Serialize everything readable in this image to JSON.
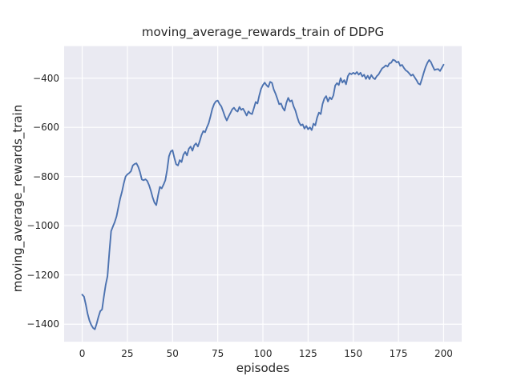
{
  "figure": {
    "title": "moving_average_rewards_train of DDPG",
    "xlabel": "episodes",
    "ylabel": "moving_average_rewards_train",
    "colors": {
      "line": "#4c72b0",
      "plot_bg": "#eaeaf2",
      "grid": "#ffffff",
      "text": "#262626",
      "figure_bg": "#ffffff"
    }
  },
  "chart_data": {
    "type": "line",
    "title": "moving_average_rewards_train of DDPG",
    "xlabel": "episodes",
    "ylabel": "moving_average_rewards_train",
    "grid": true,
    "legend_position": "none",
    "xlim": [
      -10,
      210
    ],
    "ylim": [
      -1471.5,
      -269.6
    ],
    "x_ticks": [
      0,
      25,
      50,
      75,
      100,
      125,
      150,
      175,
      200
    ],
    "x_tick_labels": [
      "0",
      "25",
      "50",
      "75",
      "100",
      "125",
      "150",
      "175",
      "200"
    ],
    "y_ticks": [
      -400,
      -600,
      -800,
      -1000,
      -1200,
      -1400
    ],
    "y_tick_labels": [
      "−400",
      "−600",
      "−800",
      "−1000",
      "−1200",
      "−1400"
    ],
    "x_start": 0,
    "x_step": 1,
    "series": [
      {
        "name": "moving_average_rewards_train",
        "color": "#4c72b0",
        "values": [
          -1280,
          -1288,
          -1320,
          -1358,
          -1385,
          -1403,
          -1415,
          -1421,
          -1398,
          -1370,
          -1347,
          -1340,
          -1288,
          -1240,
          -1205,
          -1110,
          -1022,
          -1003,
          -985,
          -962,
          -925,
          -890,
          -862,
          -828,
          -800,
          -791,
          -786,
          -778,
          -755,
          -749,
          -746,
          -760,
          -782,
          -812,
          -815,
          -811,
          -818,
          -835,
          -858,
          -885,
          -906,
          -916,
          -876,
          -842,
          -848,
          -833,
          -815,
          -773,
          -718,
          -698,
          -693,
          -724,
          -750,
          -755,
          -733,
          -741,
          -711,
          -700,
          -714,
          -687,
          -678,
          -695,
          -673,
          -665,
          -678,
          -657,
          -632,
          -615,
          -620,
          -600,
          -583,
          -555,
          -525,
          -505,
          -494,
          -491,
          -505,
          -515,
          -535,
          -556,
          -572,
          -556,
          -542,
          -527,
          -520,
          -531,
          -536,
          -517,
          -529,
          -524,
          -537,
          -552,
          -535,
          -543,
          -546,
          -522,
          -497,
          -503,
          -470,
          -443,
          -428,
          -418,
          -429,
          -436,
          -415,
          -419,
          -446,
          -463,
          -484,
          -506,
          -503,
          -521,
          -532,
          -500,
          -480,
          -495,
          -490,
          -515,
          -532,
          -558,
          -580,
          -592,
          -588,
          -605,
          -594,
          -608,
          -600,
          -611,
          -585,
          -592,
          -560,
          -540,
          -546,
          -505,
          -483,
          -473,
          -495,
          -478,
          -486,
          -470,
          -430,
          -420,
          -428,
          -400,
          -418,
          -408,
          -425,
          -392,
          -380,
          -384,
          -378,
          -383,
          -375,
          -386,
          -378,
          -393,
          -386,
          -403,
          -390,
          -404,
          -387,
          -399,
          -404,
          -392,
          -385,
          -372,
          -360,
          -355,
          -348,
          -353,
          -340,
          -337,
          -325,
          -328,
          -336,
          -333,
          -350,
          -346,
          -358,
          -368,
          -373,
          -381,
          -390,
          -385,
          -397,
          -408,
          -422,
          -426,
          -403,
          -378,
          -355,
          -338,
          -326,
          -335,
          -352,
          -367,
          -364,
          -363,
          -371,
          -358,
          -345
        ]
      }
    ]
  }
}
